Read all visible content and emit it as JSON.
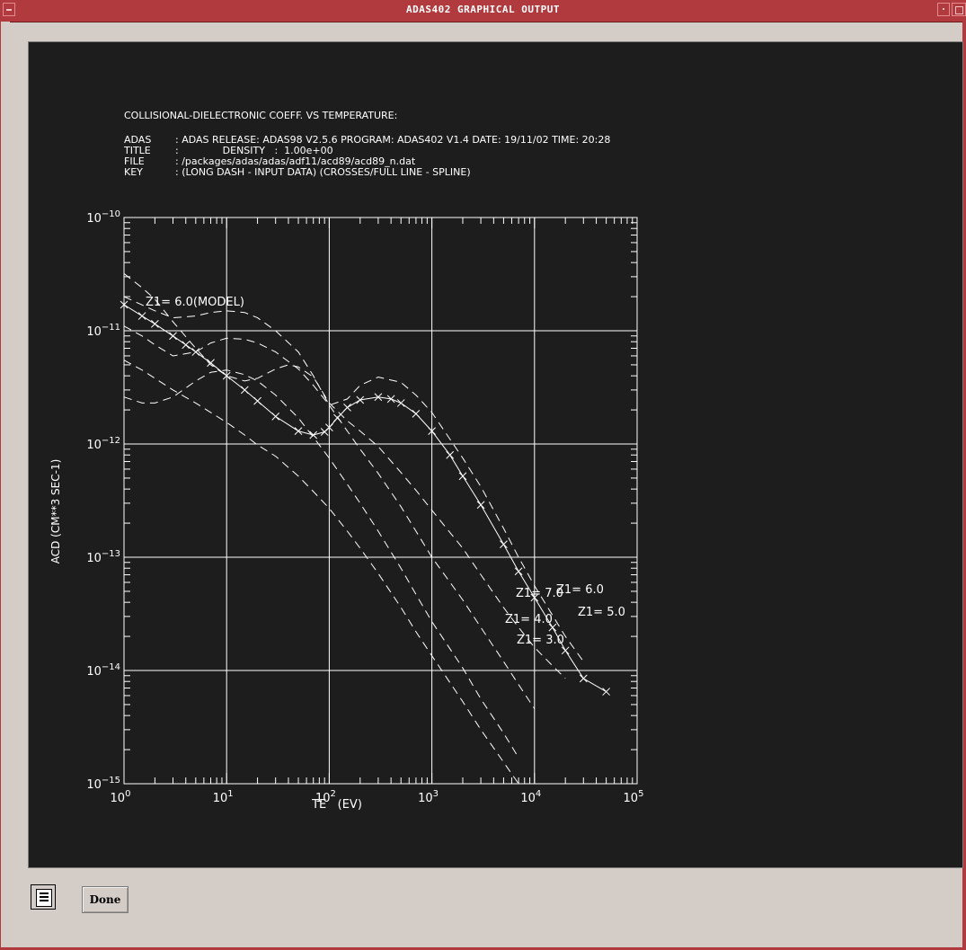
{
  "window": {
    "title": "ADAS402 GRAPHICAL OUTPUT",
    "done_label": "Done"
  },
  "icons": {
    "window_menu": "window-menu-icon",
    "minimize": "minimize-icon",
    "maximize": "maximize-icon",
    "list": "list-icon"
  },
  "colors": {
    "titlebar": "#b03a3e",
    "plot_background": "#1d1d1d",
    "plot_foreground": "#ffffff",
    "window_background": "#d4ccc7"
  },
  "header": {
    "heading": "COLLISIONAL-DIELECTRONIC COEFF. VS TEMPERATURE:",
    "rows": [
      {
        "key": "ADAS",
        "value": ": ADAS RELEASE: ADAS98 V2.5.6 PROGRAM: ADAS402 V1.4 DATE: 19/11/02 TIME: 20:28"
      },
      {
        "key": "TITLE",
        "value": ":              DENSITY   :  1.00e+00"
      },
      {
        "key": "FILE",
        "value": ": /packages/adas/adas/adf11/acd89/acd89_n.dat"
      },
      {
        "key": "KEY",
        "value": ": (LONG DASH - INPUT DATA) (CROSSES/FULL LINE - SPLINE)"
      }
    ]
  },
  "chart_data": {
    "type": "line",
    "xlabel": "TE   (EV)",
    "ylabel": "ACD (CM**3 SEC-1)",
    "x_scale": "log",
    "y_scale": "log",
    "xlim": [
      1,
      100000
    ],
    "ylim": [
      1e-15,
      1e-10
    ],
    "grid": true,
    "x_ticks": [
      {
        "value": 1,
        "mantissa": "10",
        "exp": "0"
      },
      {
        "value": 10,
        "mantissa": "10",
        "exp": "1"
      },
      {
        "value": 100,
        "mantissa": "10",
        "exp": "2"
      },
      {
        "value": 1000,
        "mantissa": "10",
        "exp": "3"
      },
      {
        "value": 10000,
        "mantissa": "10",
        "exp": "4"
      },
      {
        "value": 100000,
        "mantissa": "10",
        "exp": "5"
      }
    ],
    "y_ticks": [
      {
        "value": 1e-10,
        "mantissa": "10",
        "exp": "−10"
      },
      {
        "value": 1e-11,
        "mantissa": "10",
        "exp": "−11"
      },
      {
        "value": 1e-12,
        "mantissa": "10",
        "exp": "−12"
      },
      {
        "value": 1e-13,
        "mantissa": "10",
        "exp": "−13"
      },
      {
        "value": 1e-14,
        "mantissa": "10",
        "exp": "−14"
      },
      {
        "value": 1e-15,
        "mantissa": "10",
        "exp": "−15"
      }
    ],
    "series": [
      {
        "label": "Z1= 6.0(MODEL)",
        "style": "solid-crosses",
        "x": [
          1,
          1.5,
          2,
          3,
          4,
          5,
          7,
          10,
          15,
          20,
          30,
          50,
          70,
          90,
          100,
          120,
          150,
          200,
          300,
          400,
          500,
          700,
          1000,
          1500,
          2000,
          3000,
          5000,
          7000,
          10000,
          15000,
          20000,
          30000,
          50000
        ],
        "y": [
          1.7e-11,
          1.35e-11,
          1.15e-11,
          9e-12,
          7.5e-12,
          6.5e-12,
          5.2e-12,
          4e-12,
          3e-12,
          2.4e-12,
          1.75e-12,
          1.3e-12,
          1.2e-12,
          1.28e-12,
          1.4e-12,
          1.7e-12,
          2.1e-12,
          2.45e-12,
          2.6e-12,
          2.5e-12,
          2.3e-12,
          1.85e-12,
          1.3e-12,
          8e-13,
          5.2e-13,
          2.9e-13,
          1.3e-13,
          7.5e-14,
          4.4e-14,
          2.4e-14,
          1.5e-14,
          8.5e-15,
          6.5e-15
        ]
      },
      {
        "label": "Z1= 6.0",
        "style": "dash",
        "x": [
          1,
          2,
          3,
          5,
          7,
          10,
          15,
          20,
          30,
          50,
          70,
          100,
          150,
          200,
          300,
          500,
          700,
          1000,
          2000,
          3000,
          5000,
          7000,
          10000,
          20000,
          30000
        ],
        "y": [
          2e-11,
          1.5e-11,
          1.3e-11,
          1.35e-11,
          1.45e-11,
          1.5e-11,
          1.45e-11,
          1.3e-11,
          1e-11,
          6.5e-12,
          4e-12,
          2.2e-12,
          2.5e-12,
          3.3e-12,
          3.9e-12,
          3.5e-12,
          2.7e-12,
          1.9e-12,
          7.5e-13,
          4.2e-13,
          1.8e-13,
          1e-13,
          5.6e-14,
          2e-14,
          1.2e-14
        ]
      },
      {
        "label": "Z1= 5.0",
        "style": "dash",
        "x": [
          1,
          1.5,
          2,
          3,
          5,
          7,
          10,
          15,
          20,
          30,
          40,
          50,
          70,
          100,
          150,
          200,
          300,
          500,
          700,
          1000,
          2000,
          3000,
          5000,
          7000,
          10000,
          15000,
          20000
        ],
        "y": [
          3.2e-11,
          2.4e-11,
          1.9e-11,
          1.2e-11,
          7e-12,
          5e-12,
          4e-12,
          3.6e-12,
          3.8e-12,
          4.6e-12,
          5e-12,
          4.8e-12,
          3.9e-12,
          2.3e-12,
          1.6e-12,
          1.3e-12,
          9.5e-13,
          5.6e-13,
          3.9e-13,
          2.6e-13,
          1.2e-13,
          7e-14,
          3.6e-14,
          2.4e-14,
          1.6e-14,
          1.1e-14,
          8.5e-15
        ]
      },
      {
        "label": "Z1= 7.0",
        "style": "dash",
        "x": [
          1,
          1.5,
          2,
          3,
          5,
          7,
          10,
          15,
          20,
          30,
          50,
          70,
          100,
          150,
          200,
          300,
          500,
          700,
          1000,
          2000,
          3000,
          5000,
          7000,
          10000
        ],
        "y": [
          1.1e-11,
          9e-12,
          7.5e-12,
          6e-12,
          6.5e-12,
          7.8e-12,
          8.6e-12,
          8.4e-12,
          7.8e-12,
          6.5e-12,
          4.6e-12,
          3.3e-12,
          2.2e-12,
          1.3e-12,
          9e-13,
          5.5e-13,
          2.8e-13,
          1.7e-13,
          1e-13,
          4.2e-14,
          2.4e-14,
          1.2e-14,
          7.5e-15,
          4.6e-15
        ]
      },
      {
        "label": "Z1= 4.0",
        "style": "dash",
        "x": [
          1,
          1.5,
          2,
          3,
          5,
          7,
          10,
          15,
          20,
          30,
          50,
          70,
          100,
          150,
          200,
          300,
          500,
          700,
          1000,
          2000,
          3000,
          5000,
          7000
        ],
        "y": [
          2.6e-12,
          2.3e-12,
          2.3e-12,
          2.6e-12,
          3.6e-12,
          4.3e-12,
          4.5e-12,
          4.1e-12,
          3.6e-12,
          2.7e-12,
          1.7e-12,
          1.15e-12,
          7.5e-13,
          4.4e-13,
          3e-13,
          1.7e-13,
          8e-14,
          4.7e-14,
          2.7e-14,
          1.05e-14,
          5.6e-15,
          2.8e-15,
          1.7e-15
        ]
      },
      {
        "label": "Z1= 3.0",
        "style": "dash",
        "x": [
          1,
          1.5,
          2,
          3,
          5,
          7,
          10,
          15,
          20,
          30,
          50,
          70,
          100,
          150,
          200,
          300,
          500,
          700,
          1000,
          2000,
          3000,
          5000,
          7000
        ],
        "y": [
          5.5e-12,
          4.5e-12,
          3.8e-12,
          3e-12,
          2.3e-12,
          1.9e-12,
          1.55e-12,
          1.2e-12,
          9.8e-13,
          7.8e-13,
          5.2e-13,
          3.8e-13,
          2.7e-13,
          1.7e-13,
          1.2e-13,
          7.2e-14,
          3.6e-14,
          2.2e-14,
          1.35e-14,
          5.3e-15,
          3e-15,
          1.55e-15,
          1e-15
        ]
      }
    ],
    "annotations": [
      "Z1= 6.0(MODEL)",
      "Z1= 6.0",
      "Z1= 7.0",
      "Z1= 5.0",
      "Z1= 4.0",
      "Z1= 3.0"
    ]
  }
}
